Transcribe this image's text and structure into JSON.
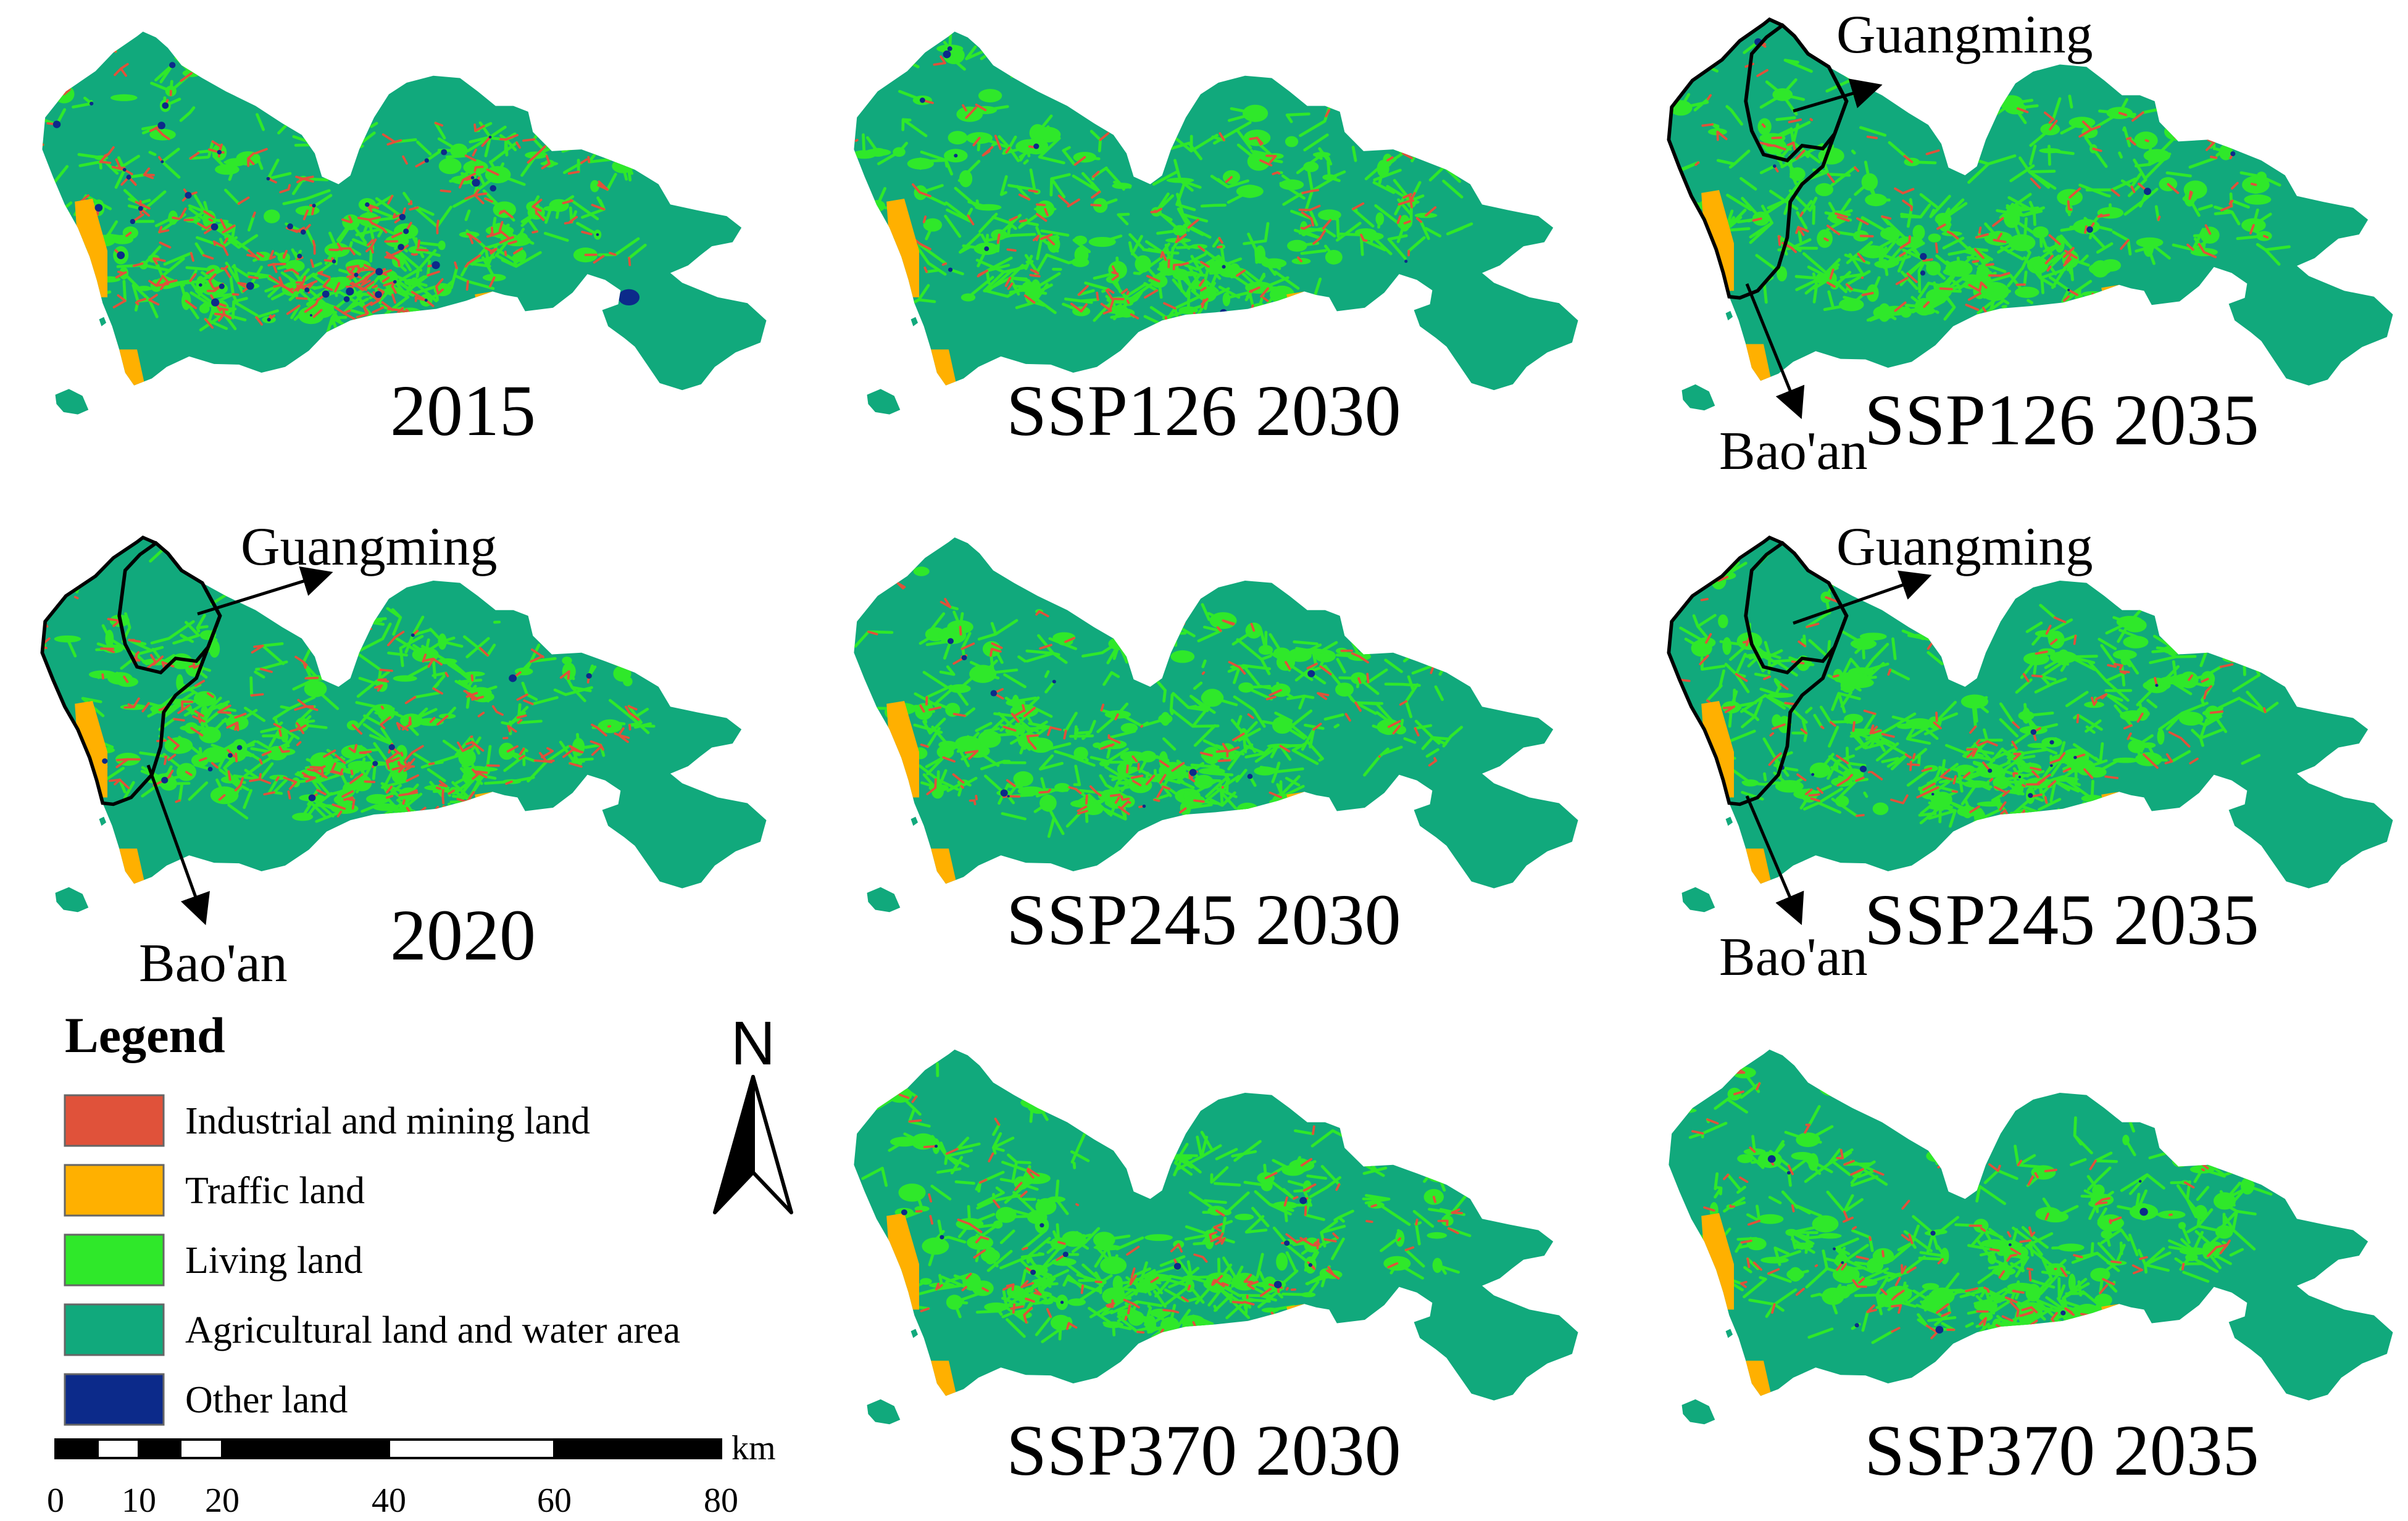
{
  "panels": [
    {
      "id": "p2015",
      "title": "2015",
      "districts": false
    },
    {
      "id": "p126_2030",
      "title": "SSP126 2030",
      "districts": false
    },
    {
      "id": "p126_2035",
      "title": "SSP126 2035",
      "districts": true
    },
    {
      "id": "p2020",
      "title": "2020",
      "districts": true
    },
    {
      "id": "p245_2030",
      "title": "SSP245 2030",
      "districts": false
    },
    {
      "id": "p245_2035",
      "title": "SSP245 2035",
      "districts": true
    },
    {
      "id": "p370_2030",
      "title": "SSP370 2030",
      "districts": false
    },
    {
      "id": "p370_2035",
      "title": "SSP370 2035",
      "districts": false
    }
  ],
  "districts": {
    "guangming": "Guangming",
    "baoan": "Bao'an"
  },
  "legend": {
    "title": "Legend",
    "items": [
      {
        "label": "Industrial and mining land",
        "color": "#e0523a"
      },
      {
        "label": "Traffic land",
        "color": "#ffb000"
      },
      {
        "label": "Living land",
        "color": "#2fe82a"
      },
      {
        "label": "Agricultural land and water area",
        "color": "#11a97c"
      },
      {
        "label": "Other land",
        "color": "#0c2a8a"
      }
    ]
  },
  "north_arrow": {
    "letter": "N",
    "icon": "north-arrow-icon"
  },
  "scale_bar": {
    "unit": "km",
    "ticks": [
      "0",
      "10",
      "20",
      "40",
      "60",
      "80"
    ]
  },
  "colors": {
    "base_land": "#11a97c",
    "living": "#2fe82a",
    "industrial": "#e0523a",
    "traffic": "#ffb000",
    "other": "#0c2a8a"
  }
}
